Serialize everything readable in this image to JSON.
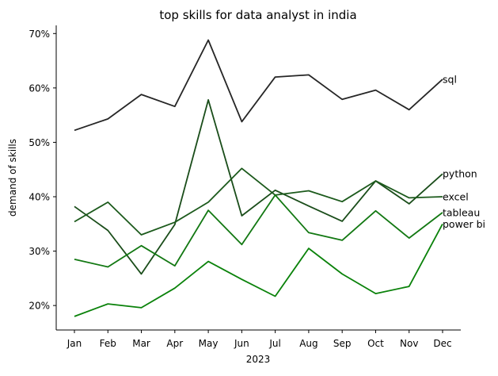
{
  "chart_data": {
    "type": "line",
    "title": "top skills for data analyst in india",
    "xlabel": "2023",
    "ylabel": "demand of skills",
    "categories": [
      "Jan",
      "Feb",
      "Mar",
      "Apr",
      "May",
      "Jun",
      "Jul",
      "Aug",
      "Sep",
      "Oct",
      "Nov",
      "Dec"
    ],
    "y_ticks": [
      "20%",
      "30%",
      "40%",
      "50%",
      "60%",
      "70%"
    ],
    "y_tick_values": [
      20,
      30,
      40,
      50,
      60,
      70
    ],
    "ylim": [
      15.5,
      71.5
    ],
    "grid": false,
    "legend": "none (series labels at line ends)",
    "series": [
      {
        "name": "sql",
        "color": "#262626",
        "values": [
          52.2,
          54.3,
          58.8,
          56.6,
          68.8,
          53.8,
          62.0,
          62.4,
          57.9,
          59.6,
          56.0,
          61.6
        ]
      },
      {
        "name": "python",
        "color": "#1a4d1a",
        "values": [
          38.2,
          33.8,
          25.8,
          34.9,
          57.8,
          36.5,
          41.2,
          38.3,
          35.5,
          42.9,
          38.7,
          44.2
        ]
      },
      {
        "name": "excel",
        "color": "#1c5a1c",
        "values": [
          35.4,
          39.0,
          33.0,
          35.3,
          39.0,
          45.2,
          40.3,
          41.1,
          39.1,
          42.9,
          39.8,
          40.0
        ]
      },
      {
        "name": "tableau",
        "color": "#127812",
        "values": [
          28.5,
          27.1,
          31.0,
          27.3,
          37.5,
          31.2,
          40.3,
          33.4,
          32.0,
          37.4,
          32.4,
          37.1
        ]
      },
      {
        "name": "power bi",
        "color": "#0a820a",
        "values": [
          18.0,
          20.3,
          19.6,
          23.2,
          28.1,
          24.8,
          21.7,
          30.5,
          25.8,
          22.2,
          23.5,
          35.0
        ]
      }
    ]
  }
}
